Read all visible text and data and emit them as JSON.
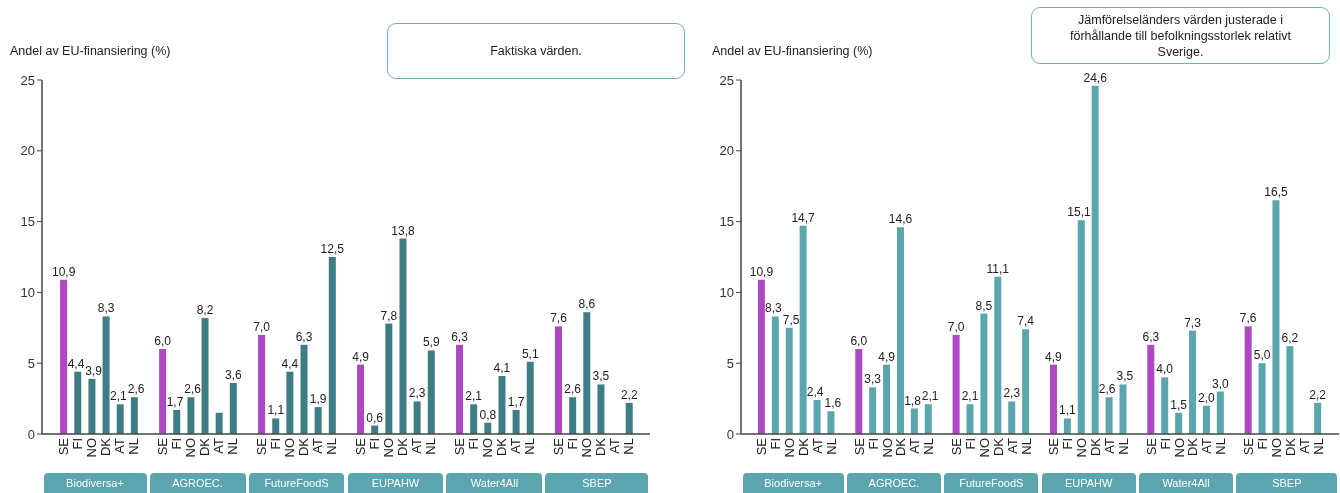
{
  "chart_data": [
    {
      "type": "bar",
      "title": "Faktiska värden.",
      "ylabel": "Andel av EU-finansiering (%)",
      "categories": [
        null,
        "SE",
        "FI",
        "NO",
        "DK",
        "AT",
        "NL",
        null,
        "SE",
        "FI",
        "NO",
        "DK",
        "AT",
        "NL",
        null,
        "SE",
        "FI",
        "NO",
        "DK",
        "AT",
        "NL",
        null,
        "SE",
        "FI",
        "NO",
        "DK",
        "AT",
        "NL",
        null,
        "SE",
        "FI",
        "NO",
        "DK",
        "AT",
        "NL",
        null,
        "SE",
        "FI",
        "NO",
        "DK",
        "AT",
        "NL",
        null
      ],
      "values": [
        null,
        10.9,
        4.4,
        3.9,
        8.3,
        2.1,
        2.6,
        null,
        6.0,
        1.7,
        2.6,
        8.2,
        1.5,
        3.6,
        null,
        7.0,
        1.1,
        4.4,
        6.3,
        1.9,
        12.5,
        null,
        4.9,
        0.6,
        7.8,
        13.8,
        2.3,
        5.9,
        null,
        6.3,
        2.1,
        0.8,
        4.1,
        1.7,
        5.1,
        null,
        7.6,
        2.6,
        8.6,
        3.5,
        null,
        2.2,
        null
      ],
      "value_labels": [
        null,
        "10,9",
        "4,4",
        "3,9",
        "8,3",
        "2,1",
        "2,6",
        null,
        "6,0",
        "1,7",
        "2,6",
        "8,2",
        null,
        "3,6",
        null,
        "7,0",
        "1,1",
        "4,4",
        "6,3",
        "1,9",
        "12,5",
        null,
        "4,9",
        "0,6",
        "7,8",
        "13,8",
        "2,3",
        "5,9",
        null,
        "6,3",
        "2,1",
        "0,8",
        "4,1",
        "1,7",
        "5,1",
        null,
        "7,6",
        "2,6",
        "8,6",
        "3,5",
        null,
        "2,2",
        null
      ],
      "colors": [
        null,
        "#ae47c4",
        "#3f7d86",
        "#3f7d86",
        "#3f7d86",
        "#3f7d86",
        "#3f7d86",
        null,
        "#ae47c4",
        "#3f7d86",
        "#3f7d86",
        "#3f7d86",
        "#3f7d86",
        "#3f7d86",
        null,
        "#ae47c4",
        "#3f7d86",
        "#3f7d86",
        "#3f7d86",
        "#3f7d86",
        "#3f7d86",
        null,
        "#ae47c4",
        "#3f7d86",
        "#3f7d86",
        "#3f7d86",
        "#3f7d86",
        "#3f7d86",
        null,
        "#ae47c4",
        "#3f7d86",
        "#3f7d86",
        "#3f7d86",
        "#3f7d86",
        "#3f7d86",
        null,
        "#ae47c4",
        "#3f7d86",
        "#3f7d86",
        "#3f7d86",
        "#3f7d86",
        "#3f7d86",
        null
      ],
      "ylim": [
        0,
        25
      ],
      "yticks": [
        0,
        5,
        10,
        15,
        20,
        25
      ],
      "annotations": [
        "Biodiversa+",
        "AGROEC.",
        "FutureFoodS",
        "EUPAHW",
        "Water4All",
        "SBEP"
      ]
    },
    {
      "type": "bar",
      "title": "Jämförelseländers värden justerade i förhållande till befolkningsstorlek relativt Sverige.",
      "ylabel": "Andel av EU-finansiering (%)",
      "categories": [
        null,
        "SE",
        "FI",
        "NO",
        "DK",
        "AT",
        "NL",
        null,
        "SE",
        "FI",
        "NO",
        "DK",
        "AT",
        "NL",
        null,
        "SE",
        "FI",
        "NO",
        "DK",
        "AT",
        "NL",
        null,
        "SE",
        "FI",
        "NO",
        "DK",
        "AT",
        "NL",
        null,
        "SE",
        "FI",
        "NO",
        "DK",
        "AT",
        "NL",
        null,
        "SE",
        "FI",
        "NO",
        "DK",
        "AT",
        "NL",
        null
      ],
      "values": [
        null,
        10.9,
        8.3,
        7.5,
        14.7,
        2.4,
        1.6,
        null,
        6.0,
        3.3,
        4.9,
        14.6,
        1.8,
        2.1,
        null,
        7.0,
        2.1,
        8.5,
        11.1,
        2.3,
        7.4,
        null,
        4.9,
        1.1,
        15.1,
        24.6,
        2.6,
        3.5,
        null,
        6.3,
        4.0,
        1.5,
        7.3,
        2.0,
        3.0,
        null,
        7.6,
        5.0,
        16.5,
        6.2,
        null,
        2.2,
        null
      ],
      "value_labels": [
        null,
        "10,9",
        "8,3",
        "7,5",
        "14,7",
        "2,4",
        "1,6",
        null,
        "6,0",
        "3,3",
        "4,9",
        "14,6",
        "1,8",
        "2,1",
        null,
        "7,0",
        "2,1",
        "8,5",
        "11,1",
        "2,3",
        "7,4",
        null,
        "4,9",
        "1,1",
        "15,1",
        "24,6",
        "2,6",
        "3,5",
        null,
        "6,3",
        "4,0",
        "1,5",
        "7,3",
        "2,0",
        "3,0",
        null,
        "7,6",
        "5,0",
        "16,5",
        "6,2",
        null,
        "2,2",
        null
      ],
      "colors": [
        null,
        "#ae47c4",
        "#5ba6ae",
        "#5ba6ae",
        "#5ba6ae",
        "#5ba6ae",
        "#5ba6ae",
        null,
        "#ae47c4",
        "#5ba6ae",
        "#5ba6ae",
        "#5ba6ae",
        "#5ba6ae",
        "#5ba6ae",
        null,
        "#ae47c4",
        "#5ba6ae",
        "#5ba6ae",
        "#5ba6ae",
        "#5ba6ae",
        "#5ba6ae",
        null,
        "#ae47c4",
        "#5ba6ae",
        "#5ba6ae",
        "#5ba6ae",
        "#5ba6ae",
        "#5ba6ae",
        null,
        "#ae47c4",
        "#5ba6ae",
        "#5ba6ae",
        "#5ba6ae",
        "#5ba6ae",
        "#5ba6ae",
        null,
        "#ae47c4",
        "#5ba6ae",
        "#5ba6ae",
        "#5ba6ae",
        "#5ba6ae",
        "#5ba6ae",
        null
      ],
      "ylim": [
        0,
        25
      ],
      "yticks": [
        0,
        5,
        10,
        15,
        20,
        25
      ],
      "annotations": [
        "Biodiversa+",
        "AGROEC.",
        "FutureFoodS",
        "EUPAHW",
        "Water4All",
        "SBEP"
      ]
    }
  ]
}
